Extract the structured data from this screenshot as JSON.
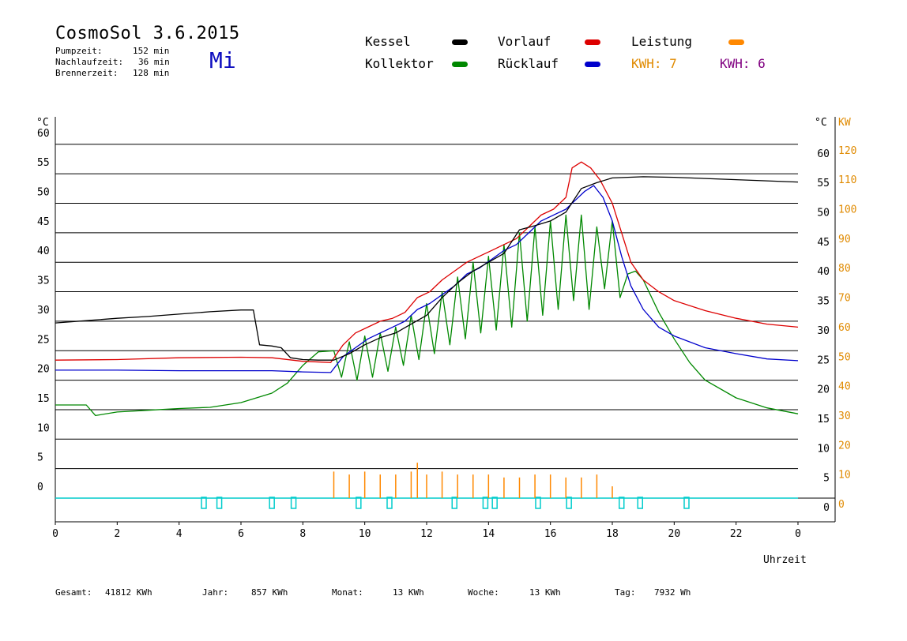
{
  "header": {
    "title": "CosmoSol 3.6.2015",
    "day": "Mi",
    "stats": [
      {
        "label": "Pumpzeit:",
        "value": "152 min"
      },
      {
        "label": "Nachlaufzeit:",
        "value": "36 min"
      },
      {
        "label": "Brennerzeit:",
        "value": "128 min"
      }
    ]
  },
  "legend": {
    "items": [
      {
        "label": "Kessel",
        "color": "#000000"
      },
      {
        "label": "Vorlauf",
        "color": "#dd0000"
      },
      {
        "label": "Leistung",
        "color": "#ff8800"
      },
      {
        "label": "Kollektor",
        "color": "#008800"
      },
      {
        "label": "Rücklauf",
        "color": "#0000cc"
      }
    ],
    "kwh1": "KWH: 7",
    "kwh1_color": "#e08a00",
    "kwh2": "KWH: 6",
    "kwh2_color": "#800080"
  },
  "footer": {
    "items": [
      {
        "label": "Gesamt:",
        "value": "41812 KWh"
      },
      {
        "label": "Jahr:",
        "value": "857 KWh"
      },
      {
        "label": "Monat:",
        "value": "13 KWh"
      },
      {
        "label": "Woche:",
        "value": "13 KWh"
      },
      {
        "label": "Tag:",
        "value": "7932 Wh"
      }
    ]
  },
  "chart_data": {
    "type": "line",
    "xlabel": "Uhrzeit",
    "ylabel_left": "°C",
    "ylabel_right": "°C",
    "ylabel_kw": "KW",
    "xlim": [
      0,
      24
    ],
    "ylim": [
      -4,
      62
    ],
    "grid": true,
    "x_ticks": [
      "0",
      "2",
      "4",
      "6",
      "8",
      "10",
      "12",
      "14",
      "16",
      "18",
      "20",
      "22",
      "0"
    ],
    "y_ticks_left": [
      "60",
      "55",
      "50",
      "45",
      "40",
      "35",
      "30",
      "25",
      "20",
      "15",
      "10",
      "5",
      "0"
    ],
    "y_ticks_right": [
      "60",
      "55",
      "50",
      "45",
      "40",
      "35",
      "30",
      "25",
      "20",
      "15",
      "10",
      "5",
      "0"
    ],
    "y_ticks_kw": [
      "120",
      "110",
      "100",
      "90",
      "80",
      "70",
      "60",
      "50",
      "40",
      "30",
      "20",
      "10",
      "0"
    ],
    "series": [
      {
        "name": "Kessel",
        "color": "#000000",
        "x": [
          0,
          1,
          2,
          3,
          4,
          5,
          6,
          6.4,
          6.6,
          7.0,
          7.3,
          7.6,
          8.0,
          8.5,
          9.0,
          9.5,
          10.0,
          10.5,
          11.0,
          11.5,
          12.0,
          12.5,
          13.0,
          13.5,
          14.0,
          14.5,
          15.0,
          15.5,
          16.0,
          16.5,
          17.0,
          17.5,
          18.0,
          19,
          20,
          21,
          22,
          23,
          24
        ],
        "y": [
          29.7,
          30.1,
          30.5,
          30.8,
          31.2,
          31.6,
          31.9,
          31.9,
          26,
          25.8,
          25.5,
          23.8,
          23.5,
          23.4,
          23.4,
          24.5,
          26,
          27.2,
          28,
          29.5,
          31,
          34,
          36.5,
          38.5,
          40,
          41.5,
          45.5,
          46.2,
          47,
          48.5,
          52.5,
          53.5,
          54.3,
          54.5,
          54.4,
          54.2,
          54.0,
          53.8,
          53.6
        ]
      },
      {
        "name": "Vorlauf",
        "color": "#dd0000",
        "x": [
          0,
          2,
          4,
          6,
          7,
          8,
          8.9,
          9.3,
          9.7,
          10.1,
          10.5,
          10.9,
          11.3,
          11.7,
          12.1,
          12.5,
          12.9,
          13.3,
          13.7,
          14.1,
          14.5,
          14.9,
          15.3,
          15.7,
          16.1,
          16.5,
          16.7,
          17.0,
          17.3,
          17.6,
          18.0,
          18.3,
          18.6,
          19.0,
          19.5,
          20,
          21,
          22,
          23,
          24
        ],
        "y": [
          23.4,
          23.5,
          23.8,
          23.9,
          23.8,
          23.2,
          23.0,
          26,
          28,
          29,
          30,
          30.5,
          31.5,
          34,
          35,
          37,
          38.5,
          40,
          41,
          42,
          43,
          44,
          46,
          48,
          49,
          51,
          56,
          57,
          56,
          54,
          50,
          45,
          40,
          37,
          35,
          33.5,
          31.8,
          30.5,
          29.5,
          29.0
        ]
      },
      {
        "name": "Rücklauf",
        "color": "#0000cc",
        "x": [
          0,
          2,
          4,
          6,
          7,
          8,
          8.9,
          9.3,
          9.7,
          10.1,
          10.5,
          10.9,
          11.3,
          11.7,
          12.1,
          12.5,
          12.9,
          13.3,
          13.7,
          14.1,
          14.5,
          14.9,
          15.3,
          15.7,
          16.1,
          16.5,
          16.8,
          17.1,
          17.4,
          17.7,
          18.0,
          18.3,
          18.6,
          19.0,
          19.5,
          20,
          21,
          22,
          23,
          24
        ],
        "y": [
          21.7,
          21.7,
          21.6,
          21.6,
          21.6,
          21.4,
          21.3,
          24,
          25.5,
          27,
          28,
          29,
          30,
          32,
          33,
          34.5,
          36,
          38,
          39,
          40.5,
          42,
          43,
          45,
          47,
          48,
          49,
          50.5,
          52,
          53,
          51,
          47,
          41,
          36,
          32,
          29,
          27.5,
          25.5,
          24.5,
          23.6,
          23.3
        ]
      },
      {
        "name": "Kollektor",
        "color": "#008800",
        "x": [
          0,
          1,
          1.3,
          2,
          3,
          4,
          5,
          6,
          7,
          7.5,
          8,
          8.5,
          9.0,
          9.25,
          9.5,
          9.75,
          10.0,
          10.25,
          10.5,
          10.75,
          11.0,
          11.25,
          11.5,
          11.75,
          12.0,
          12.25,
          12.5,
          12.75,
          13.0,
          13.25,
          13.5,
          13.75,
          14.0,
          14.25,
          14.5,
          14.75,
          15.0,
          15.25,
          15.5,
          15.75,
          16.0,
          16.25,
          16.5,
          16.75,
          17.0,
          17.25,
          17.5,
          17.75,
          18.0,
          18.25,
          18.5,
          18.75,
          19.0,
          19.5,
          20,
          20.5,
          21,
          22,
          23,
          24
        ],
        "y": [
          15.8,
          15.8,
          14.0,
          14.6,
          14.9,
          15.2,
          15.4,
          16.2,
          17.8,
          19.5,
          22.5,
          24.8,
          25.0,
          20.5,
          26.5,
          20.0,
          27.5,
          20.5,
          28.0,
          21.5,
          29.0,
          22.5,
          31.0,
          23.5,
          33.0,
          24.5,
          35.0,
          26.0,
          37.5,
          27.0,
          40.0,
          28.0,
          41.0,
          28.5,
          43.0,
          29.0,
          45.0,
          30.0,
          46.0,
          31.0,
          47.0,
          32.0,
          48.0,
          33.5,
          48.0,
          32.0,
          46.0,
          35.5,
          47.0,
          34.0,
          38.0,
          38.5,
          37.0,
          31.5,
          27.0,
          23.0,
          20.0,
          17.0,
          15.3,
          14.3
        ]
      },
      {
        "name": "Leistung",
        "color": "#ff8800",
        "x": [
          9.0,
          9.5,
          10.0,
          10.5,
          11.0,
          11.5,
          11.7,
          12.0,
          12.5,
          13.0,
          13.5,
          14.0,
          14.5,
          15.0,
          15.5,
          16.0,
          16.5,
          17.0,
          17.5,
          18.0
        ],
        "y": [
          9,
          8,
          9,
          8,
          8,
          9,
          12,
          8,
          9,
          8,
          8,
          8,
          7,
          7,
          8,
          8,
          7,
          7,
          8,
          4
        ]
      }
    ]
  }
}
